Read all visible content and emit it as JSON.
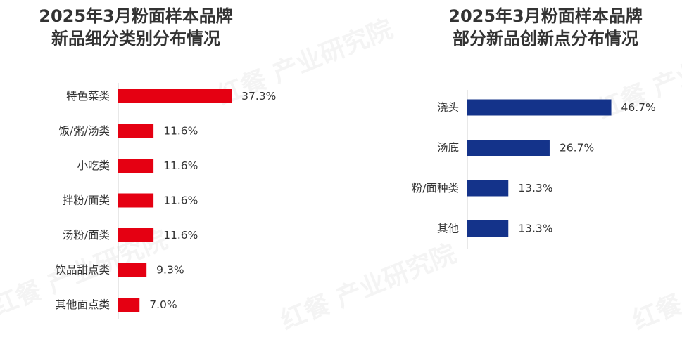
{
  "watermark": "红餐 产业研究院",
  "colors": {
    "left_bar": "#E50012",
    "right_bar": "#14338A",
    "axis": "#D0D0D0",
    "text": "#333333"
  },
  "chart_data": [
    {
      "type": "bar",
      "orientation": "horizontal",
      "title_lines": [
        "2025年3月粉面样本品牌",
        "新品细分类别分布情况"
      ],
      "categories": [
        "特色菜类",
        "饭/粥/汤类",
        "小吃类",
        "拌粉/面类",
        "汤粉/面类",
        "饮品甜点类",
        "其他面点类"
      ],
      "values": [
        37.3,
        11.6,
        11.6,
        11.6,
        11.6,
        9.3,
        7.0
      ],
      "value_labels": [
        "37.3%",
        "11.6%",
        "11.6%",
        "11.6%",
        "11.6%",
        "9.3%",
        "7.0%"
      ],
      "unit": "%",
      "color": "#E50012",
      "xlim": [
        0,
        50
      ]
    },
    {
      "type": "bar",
      "orientation": "horizontal",
      "title_lines": [
        "2025年3月粉面样本品牌",
        "部分新品创新点分布情况"
      ],
      "categories": [
        "浇头",
        "汤底",
        "粉/面种类",
        "其他"
      ],
      "values": [
        46.7,
        26.7,
        13.3,
        13.3
      ],
      "value_labels": [
        "46.7%",
        "26.7%",
        "13.3%",
        "13.3%"
      ],
      "unit": "%",
      "color": "#14338A",
      "xlim": [
        0,
        50
      ]
    }
  ]
}
